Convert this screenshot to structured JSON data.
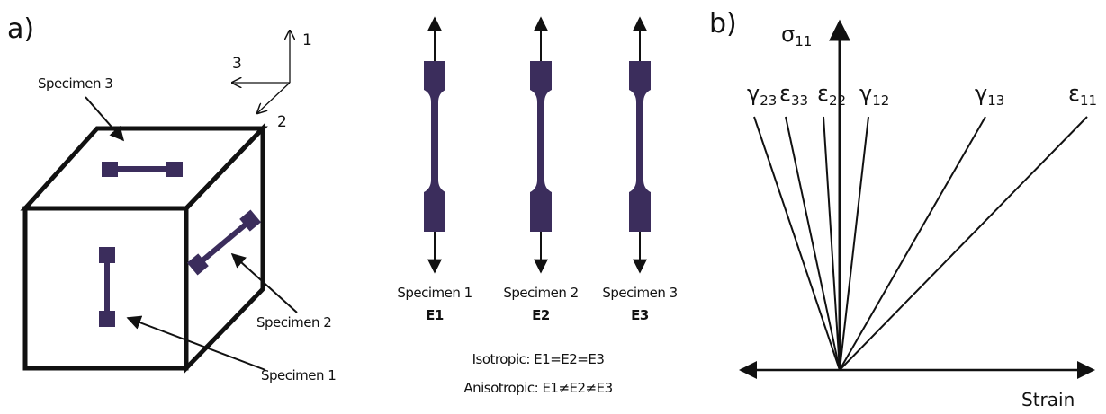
{
  "panel_a": {
    "label": "a)",
    "axes": [
      "1",
      "2",
      "3"
    ],
    "cube_labels": [
      "Specimen 3",
      "Specimen 2",
      "Specimen 1"
    ]
  },
  "specimens": [
    {
      "name": "Specimen 1",
      "modulus": "E1"
    },
    {
      "name": "Specimen 2",
      "modulus": "E2"
    },
    {
      "name": "Specimen 3",
      "modulus": "E3"
    }
  ],
  "relations": [
    "Isotropic: E1=E2=E3",
    "Anisotropic: E1≠E2≠E3"
  ],
  "panel_b": {
    "label": "b)",
    "y_axis": {
      "symbol": "σ",
      "sub": "11"
    },
    "x_axis": "Strain",
    "curves": [
      {
        "symbol": "γ",
        "sub": "23"
      },
      {
        "symbol": "ε",
        "sub": "33"
      },
      {
        "symbol": "ε",
        "sub": "22"
      },
      {
        "symbol": "γ",
        "sub": "12"
      },
      {
        "symbol": "γ",
        "sub": "13"
      },
      {
        "symbol": "ε",
        "sub": "11"
      }
    ]
  }
}
